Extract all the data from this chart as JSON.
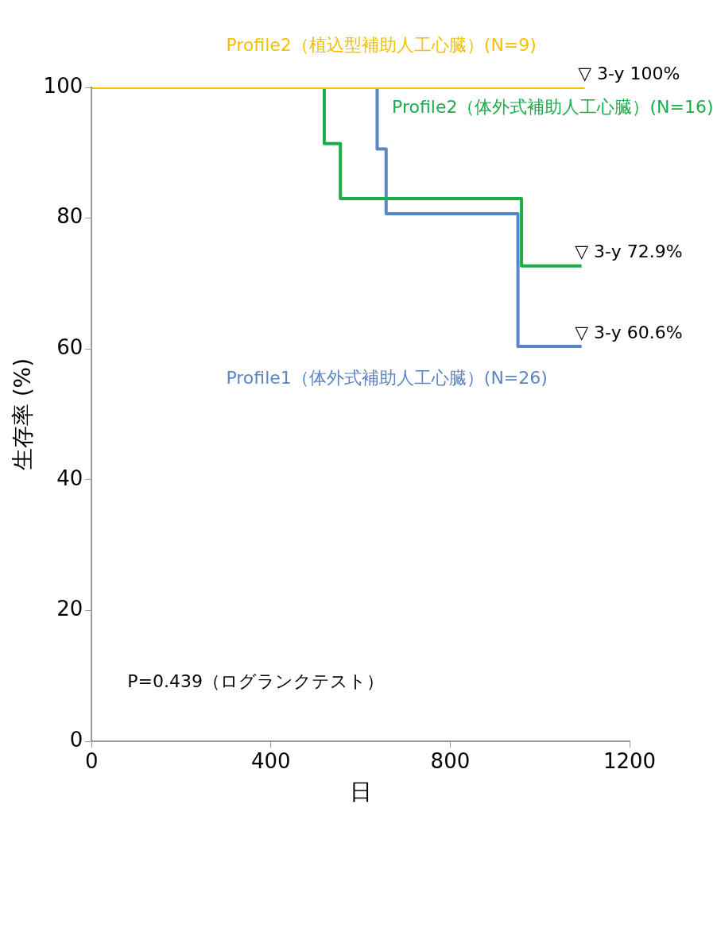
{
  "chart_data": {
    "type": "step",
    "xlabel": "日",
    "ylabel": "生存率 (%)",
    "xlim": [
      0,
      1200
    ],
    "xticks": [
      0,
      400,
      800,
      1200
    ],
    "ylim": [
      0,
      100
    ],
    "yticks": [
      0,
      20,
      40,
      60,
      80,
      100
    ],
    "grid": false,
    "legend": false,
    "marker": "none",
    "line_style": "solid",
    "series": [
      {
        "name": "Profile2（植込型補助人工心臓）(N=9)",
        "color": "#f5c000",
        "x": [
          0,
          1100
        ],
        "values": [
          100,
          100
        ]
      },
      {
        "name": "Profile2（体外式補助人工心臓）(N=16)",
        "color": "#1aae4a",
        "x": [
          0,
          519,
          555,
          959,
          1093
        ],
        "values": [
          100,
          91.4,
          83,
          72.7,
          72.7
        ]
      },
      {
        "name": "Profile1（体外式補助人工心臓）(N=26)",
        "color": "#5b86c5",
        "x": [
          0,
          637,
          657,
          951,
          1093
        ],
        "values": [
          100,
          90.6,
          80.7,
          60.4,
          60.4
        ]
      }
    ],
    "annotations": [
      "▽ 3-y 100%",
      "▽ 3-y 72.9%",
      "▽ 3-y 60.6%",
      "P=0.439（ログランクテスト）"
    ]
  }
}
